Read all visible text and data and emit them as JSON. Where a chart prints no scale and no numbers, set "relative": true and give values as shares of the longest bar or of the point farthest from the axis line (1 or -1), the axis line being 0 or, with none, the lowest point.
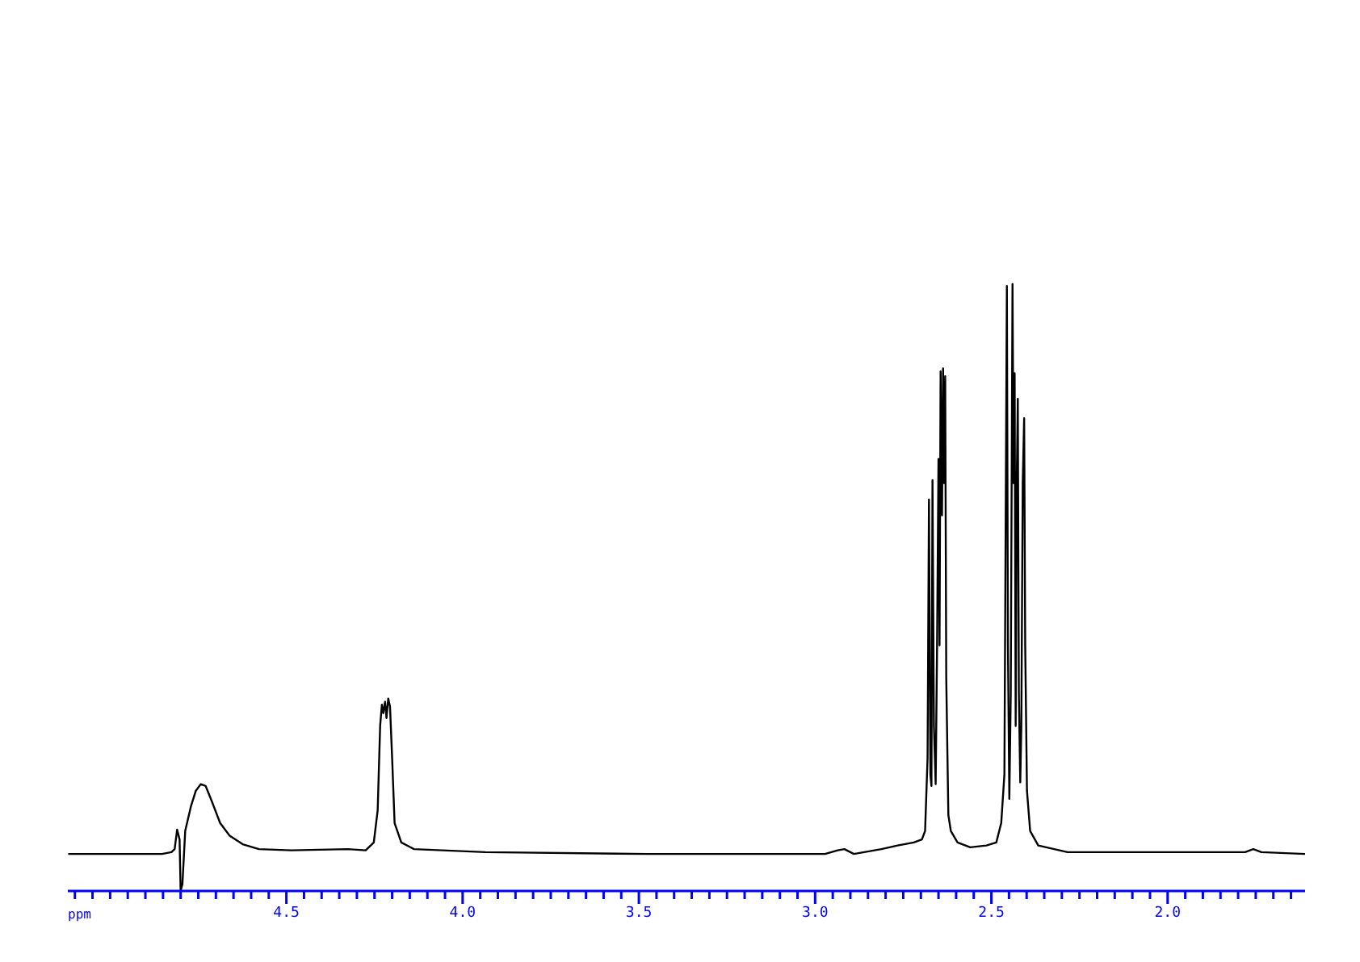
{
  "chart_data": {
    "type": "line",
    "relative": true,
    "xlabel": "ppm",
    "xlim": [
      5.12,
      1.61
    ],
    "xticks": [
      {
        "value": 5.1,
        "label": null
      },
      {
        "value": 5.05,
        "label": null
      },
      {
        "value": 5.0,
        "label": null
      },
      {
        "value": 4.95,
        "label": null
      },
      {
        "value": 4.9,
        "label": null
      },
      {
        "value": 4.85,
        "label": null
      },
      {
        "value": 4.8,
        "label": null
      },
      {
        "value": 4.75,
        "label": null
      },
      {
        "value": 4.7,
        "label": null
      },
      {
        "value": 4.65,
        "label": null
      },
      {
        "value": 4.6,
        "label": null
      },
      {
        "value": 4.55,
        "label": null
      },
      {
        "value": 4.5,
        "label": "4.5"
      },
      {
        "value": 4.45,
        "label": null
      },
      {
        "value": 4.4,
        "label": null
      },
      {
        "value": 4.35,
        "label": null
      },
      {
        "value": 4.3,
        "label": null
      },
      {
        "value": 4.25,
        "label": null
      },
      {
        "value": 4.2,
        "label": null
      },
      {
        "value": 4.15,
        "label": null
      },
      {
        "value": 4.1,
        "label": null
      },
      {
        "value": 4.05,
        "label": null
      },
      {
        "value": 4.0,
        "label": "4.0"
      },
      {
        "value": 3.95,
        "label": null
      },
      {
        "value": 3.9,
        "label": null
      },
      {
        "value": 3.85,
        "label": null
      },
      {
        "value": 3.8,
        "label": null
      },
      {
        "value": 3.75,
        "label": null
      },
      {
        "value": 3.7,
        "label": null
      },
      {
        "value": 3.65,
        "label": null
      },
      {
        "value": 3.6,
        "label": null
      },
      {
        "value": 3.55,
        "label": null
      },
      {
        "value": 3.5,
        "label": "3.5"
      },
      {
        "value": 3.45,
        "label": null
      },
      {
        "value": 3.4,
        "label": null
      },
      {
        "value": 3.35,
        "label": null
      },
      {
        "value": 3.3,
        "label": null
      },
      {
        "value": 3.25,
        "label": null
      },
      {
        "value": 3.2,
        "label": null
      },
      {
        "value": 3.15,
        "label": null
      },
      {
        "value": 3.1,
        "label": null
      },
      {
        "value": 3.05,
        "label": null
      },
      {
        "value": 3.0,
        "label": "3.0"
      },
      {
        "value": 2.95,
        "label": null
      },
      {
        "value": 2.9,
        "label": null
      },
      {
        "value": 2.85,
        "label": null
      },
      {
        "value": 2.8,
        "label": null
      },
      {
        "value": 2.75,
        "label": null
      },
      {
        "value": 2.7,
        "label": null
      },
      {
        "value": 2.65,
        "label": null
      },
      {
        "value": 2.6,
        "label": null
      },
      {
        "value": 2.55,
        "label": null
      },
      {
        "value": 2.5,
        "label": "2.5"
      },
      {
        "value": 2.45,
        "label": null
      },
      {
        "value": 2.4,
        "label": null
      },
      {
        "value": 2.35,
        "label": null
      },
      {
        "value": 2.3,
        "label": null
      },
      {
        "value": 2.25,
        "label": null
      },
      {
        "value": 2.2,
        "label": null
      },
      {
        "value": 2.15,
        "label": null
      },
      {
        "value": 2.1,
        "label": null
      },
      {
        "value": 2.05,
        "label": null
      },
      {
        "value": 2.0,
        "label": "2.0"
      },
      {
        "value": 1.95,
        "label": null
      },
      {
        "value": 1.9,
        "label": null
      },
      {
        "value": 1.85,
        "label": null
      },
      {
        "value": 1.8,
        "label": null
      },
      {
        "value": 1.75,
        "label": null
      },
      {
        "value": 1.7,
        "label": null
      },
      {
        "value": 1.65,
        "label": null
      }
    ],
    "series": [
      {
        "color": "#000000",
        "x": [
          5.119,
          4.853,
          4.826,
          4.817,
          4.81,
          4.803,
          4.8,
          4.795,
          4.787,
          4.771,
          4.757,
          4.743,
          4.729,
          4.711,
          4.688,
          4.661,
          4.624,
          4.578,
          4.486,
          4.326,
          4.275,
          4.252,
          4.241,
          4.234,
          4.229,
          4.225,
          4.22,
          4.216,
          4.211,
          4.206,
          4.2,
          4.193,
          4.174,
          4.138,
          3.936,
          3.477,
          2.972,
          2.936,
          2.917,
          2.89,
          2.812,
          2.766,
          2.72,
          2.697,
          2.688,
          2.681,
          2.677,
          2.673,
          2.67,
          2.667,
          2.663,
          2.658,
          2.654,
          2.65,
          2.647,
          2.644,
          2.64,
          2.637,
          2.634,
          2.631,
          2.628,
          2.622,
          2.615,
          2.596,
          2.56,
          2.514,
          2.486,
          2.472,
          2.463,
          2.46,
          2.456,
          2.453,
          2.449,
          2.445,
          2.44,
          2.437,
          2.434,
          2.431,
          2.428,
          2.425,
          2.422,
          2.418,
          2.415,
          2.411,
          2.407,
          2.404,
          2.399,
          2.39,
          2.367,
          2.284,
          1.78,
          1.757,
          1.734,
          1.61
        ],
        "values": [
          0.061,
          0.061,
          0.064,
          0.069,
          0.101,
          0.085,
          0.0,
          0.011,
          0.099,
          0.139,
          0.165,
          0.176,
          0.173,
          0.147,
          0.112,
          0.091,
          0.077,
          0.069,
          0.067,
          0.069,
          0.067,
          0.08,
          0.133,
          0.272,
          0.307,
          0.293,
          0.312,
          0.285,
          0.317,
          0.304,
          0.219,
          0.112,
          0.08,
          0.069,
          0.064,
          0.061,
          0.061,
          0.067,
          0.069,
          0.061,
          0.069,
          0.075,
          0.08,
          0.085,
          0.099,
          0.219,
          0.645,
          0.192,
          0.173,
          0.677,
          0.272,
          0.176,
          0.405,
          0.712,
          0.405,
          0.856,
          0.619,
          0.861,
          0.672,
          0.848,
          0.352,
          0.125,
          0.099,
          0.08,
          0.072,
          0.075,
          0.08,
          0.112,
          0.192,
          0.539,
          0.997,
          0.405,
          0.152,
          0.325,
          1.0,
          0.672,
          0.853,
          0.272,
          0.672,
          0.811,
          0.325,
          0.179,
          0.272,
          0.672,
          0.779,
          0.405,
          0.165,
          0.099,
          0.075,
          0.064,
          0.064,
          0.069,
          0.064,
          0.061
        ]
      }
    ]
  }
}
